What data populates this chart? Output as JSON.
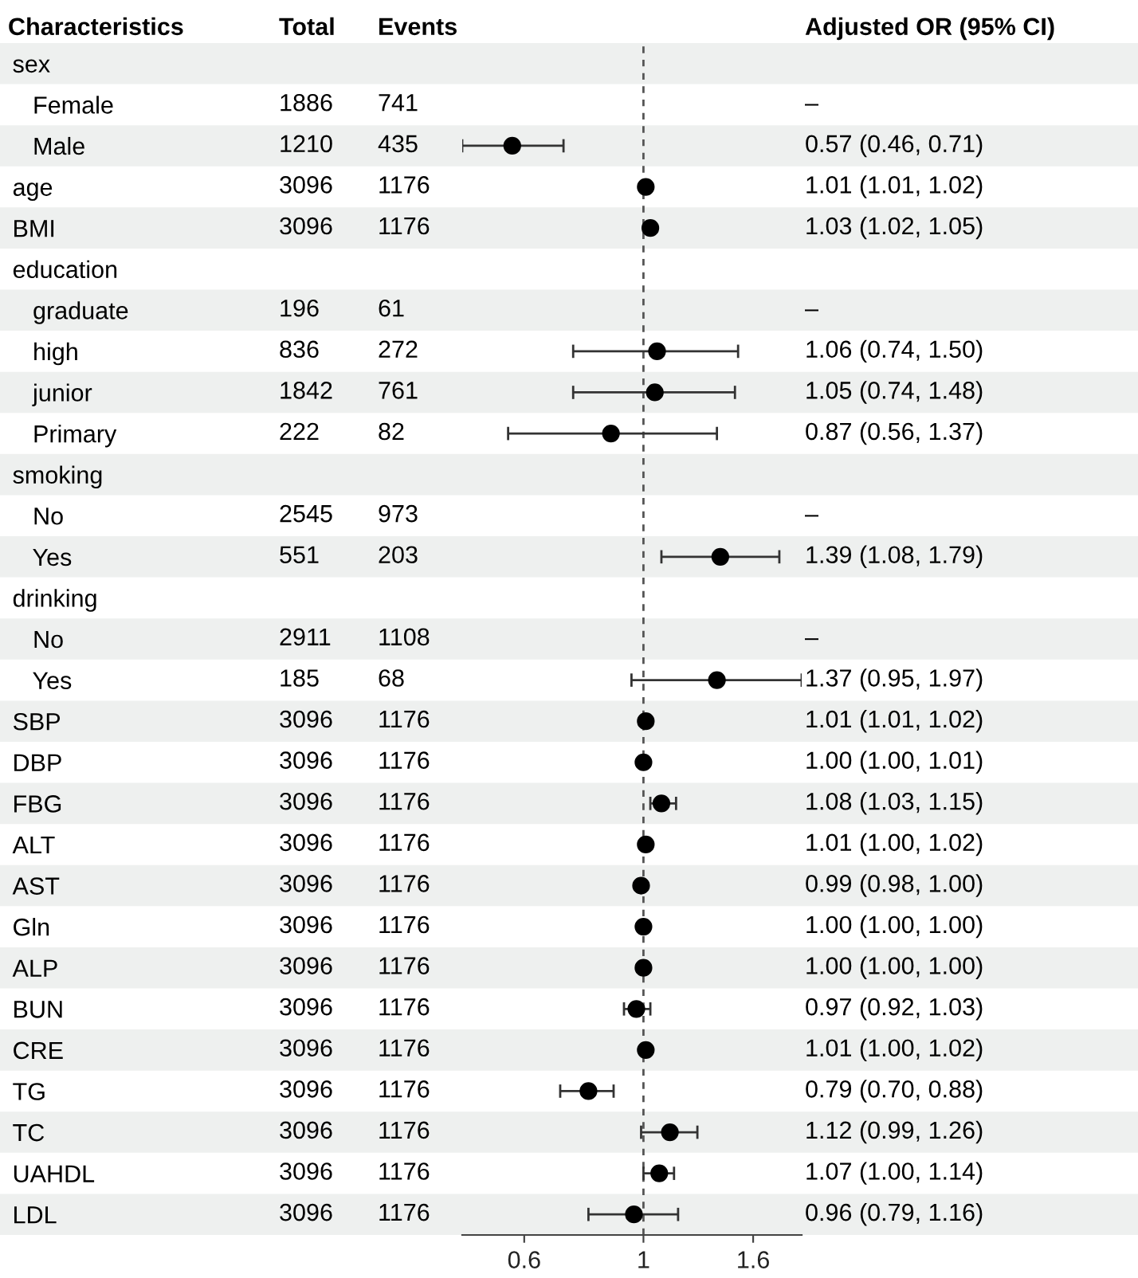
{
  "chart_data": [
    {
      "type": "other",
      "ylabel": "Characteristics",
      "data_labels": true,
      "categories": [
        "sex",
        "   Female",
        "   Male",
        "age",
        "BMI",
        "education",
        "   graduate",
        "   high",
        "   junior",
        "   Primary",
        "smoking",
        "   No",
        "   Yes",
        "drinking",
        "   No",
        "   Yes",
        "SBP",
        "DBP",
        "FBG",
        "ALT",
        "AST",
        "Gln",
        "ALP",
        "BUN",
        "CRE",
        "TG",
        "TC",
        "UAHDL",
        "LDL"
      ],
      "series": [
        {
          "name": "Total",
          "values": [
            null,
            1886,
            1210,
            3096,
            3096,
            null,
            196,
            836,
            1842,
            222,
            null,
            2545,
            551,
            null,
            2911,
            185,
            3096,
            3096,
            3096,
            3096,
            3096,
            3096,
            3096,
            3096,
            3096,
            3096,
            3096,
            3096,
            3096
          ]
        },
        {
          "name": "Events",
          "values": [
            null,
            741,
            435,
            1176,
            1176,
            null,
            61,
            272,
            761,
            82,
            null,
            973,
            203,
            null,
            1108,
            68,
            1176,
            1176,
            1176,
            1176,
            1176,
            1176,
            1176,
            1176,
            1176,
            1176,
            1176,
            1176,
            1176
          ]
        }
      ]
    },
    {
      "type": "scatter",
      "orientation": "horizontal",
      "log": "x",
      "xlim": [
        0.46,
        1.97
      ],
      "xticks": [
        0.6,
        1,
        1.6
      ],
      "tick_labels": "x",
      "marker": "circle",
      "categories": [
        null,
        null,
        null,
        null,
        null,
        null,
        null,
        null,
        null,
        null,
        null,
        null,
        null,
        null,
        null,
        null,
        null,
        null,
        null,
        null,
        null,
        null,
        null,
        null,
        null,
        null,
        null,
        null,
        null
      ],
      "ref_lines": [
        {
          "axis": "x",
          "value": 1,
          "color": "#555555",
          "line_style": "dashed"
        }
      ],
      "series": [
        {
          "name": "Adjusted OR (95% CI)",
          "color": "#000000",
          "values": [
            null,
            null,
            0.57,
            1.01,
            1.03,
            null,
            null,
            1.06,
            1.05,
            0.87,
            null,
            null,
            1.39,
            null,
            null,
            1.37,
            1.01,
            1.0,
            1.08,
            1.01,
            0.99,
            1.0,
            1.0,
            0.97,
            1.01,
            0.79,
            1.12,
            1.07,
            0.96
          ],
          "errors": [
            null,
            null,
            [
              0.46,
              0.71
            ],
            [
              1.01,
              1.02
            ],
            [
              1.02,
              1.05
            ],
            null,
            null,
            [
              0.74,
              1.5
            ],
            [
              0.74,
              1.48
            ],
            [
              0.56,
              1.37
            ],
            null,
            null,
            [
              1.08,
              1.79
            ],
            null,
            null,
            [
              0.95,
              1.97
            ],
            [
              1.01,
              1.02
            ],
            [
              1.0,
              1.01
            ],
            [
              1.03,
              1.15
            ],
            [
              1.0,
              1.02
            ],
            [
              0.98,
              1.0
            ],
            [
              1.0,
              1.0
            ],
            [
              1.0,
              1.0
            ],
            [
              0.92,
              1.03
            ],
            [
              1.0,
              1.02
            ],
            [
              0.7,
              0.88
            ],
            [
              0.99,
              1.26
            ],
            [
              1.0,
              1.14
            ],
            [
              0.79,
              1.16
            ]
          ],
          "value_labels": [
            null,
            "–",
            "0.57 (0.46, 0.71)",
            "1.01 (1.01, 1.02)",
            "1.03 (1.02, 1.05)",
            null,
            "–",
            "1.06 (0.74, 1.50)",
            "1.05 (0.74, 1.48)",
            "0.87 (0.56, 1.37)",
            null,
            "–",
            "1.39 (1.08, 1.79)",
            null,
            "–",
            "1.37 (0.95, 1.97)",
            "1.01 (1.01, 1.02)",
            "1.00 (1.00, 1.01)",
            "1.08 (1.03, 1.15)",
            "1.01 (1.00, 1.02)",
            "0.99 (0.98, 1.00)",
            "1.00 (1.00, 1.00)",
            "1.00 (1.00, 1.00)",
            "0.97 (0.92, 1.03)",
            "1.01 (1.00, 1.02)",
            "0.79 (0.70, 0.88)",
            "1.12 (0.99, 1.26)",
            "1.07 (1.00, 1.14)",
            "0.96 (0.79, 1.16)"
          ]
        }
      ]
    }
  ]
}
